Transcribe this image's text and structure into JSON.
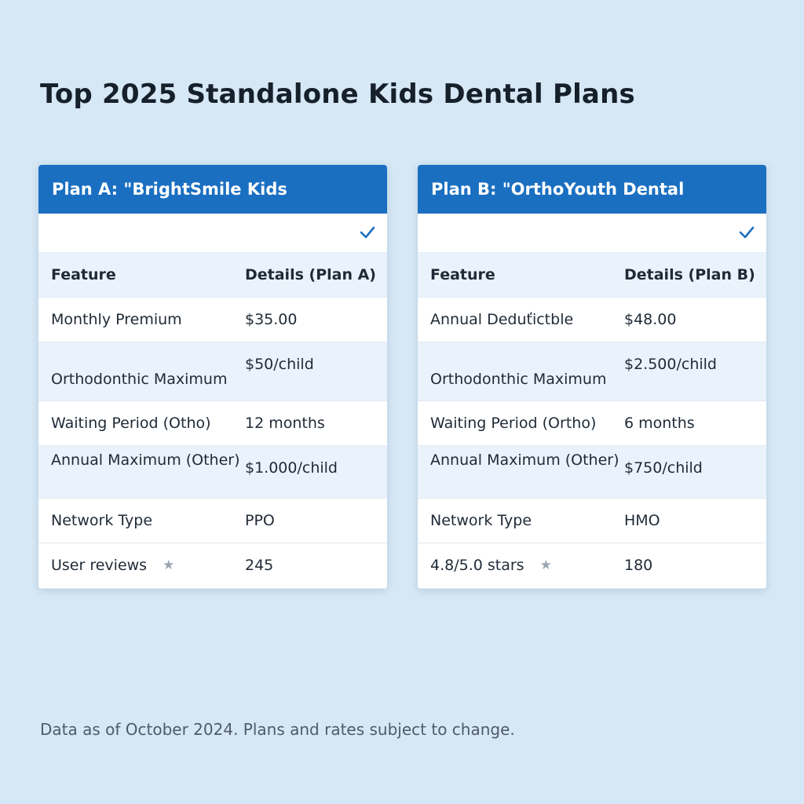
{
  "page": {
    "title": "Top 2025 Standalone Kids Dental Plans",
    "footnote": "Data as of October 2024. Plans and rates subject to change."
  },
  "colors": {
    "background": "#d6e8f5",
    "header": "#1a6fc1",
    "check": "#1a6fc1",
    "row_alt": "#eaf3fb"
  },
  "plans": [
    {
      "title": "Plan A: \"BrightSmile Kids",
      "check_icon": "checkmark-icon",
      "columns": [
        "Feature",
        "Details (Plan A)"
      ],
      "rows": [
        {
          "feature": "Monthly Premium",
          "detail": "$35.00"
        },
        {
          "feature": "Orthodonthic Maximum",
          "detail": "$50/child"
        },
        {
          "feature": "Waiting Period (Otho)",
          "detail": "12 months"
        },
        {
          "feature": "Annual Maximum (Other)",
          "detail": "$1.000/child"
        },
        {
          "feature": "Network Type",
          "detail": "PPO"
        },
        {
          "feature": "User reviews",
          "detail": "245",
          "icon": "star-icon"
        }
      ]
    },
    {
      "title": "Plan B: \"OrthoYouth Dental",
      "check_icon": "checkmark-icon",
      "columns": [
        "Feature",
        "Details (Plan B)"
      ],
      "rows": [
        {
          "feature": "Annual Deduťictble",
          "detail": "$48.00"
        },
        {
          "feature": "Orthodonthic Maximum",
          "detail": "$2.500/child"
        },
        {
          "feature": "Waiting Period (Ortho)",
          "detail": "6 months"
        },
        {
          "feature": "Annual Maximum (Other)",
          "detail": "$750/child"
        },
        {
          "feature": "Network Type",
          "detail": "HMO"
        },
        {
          "feature": "4.8/5.0 stars",
          "detail": "180",
          "icon": "star-icon"
        }
      ]
    }
  ]
}
